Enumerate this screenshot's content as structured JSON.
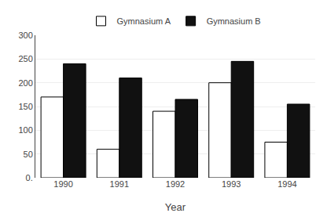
{
  "chart_data": {
    "type": "bar",
    "categories": [
      "1990",
      "1991",
      "1992",
      "1993",
      "1994"
    ],
    "series": [
      {
        "name": "Gymnasium A",
        "color": "#ffffff",
        "values": [
          170,
          60,
          140,
          200,
          75
        ]
      },
      {
        "name": "Gymnasium B",
        "color": "#111111",
        "values": [
          240,
          210,
          165,
          245,
          155
        ]
      }
    ],
    "xlabel": "Year",
    "ylim": [
      0,
      300
    ],
    "yticks": [
      {
        "value": 0,
        "label": "0."
      },
      50,
      100,
      150,
      200,
      250,
      300
    ],
    "grid": true,
    "legend": "top"
  }
}
